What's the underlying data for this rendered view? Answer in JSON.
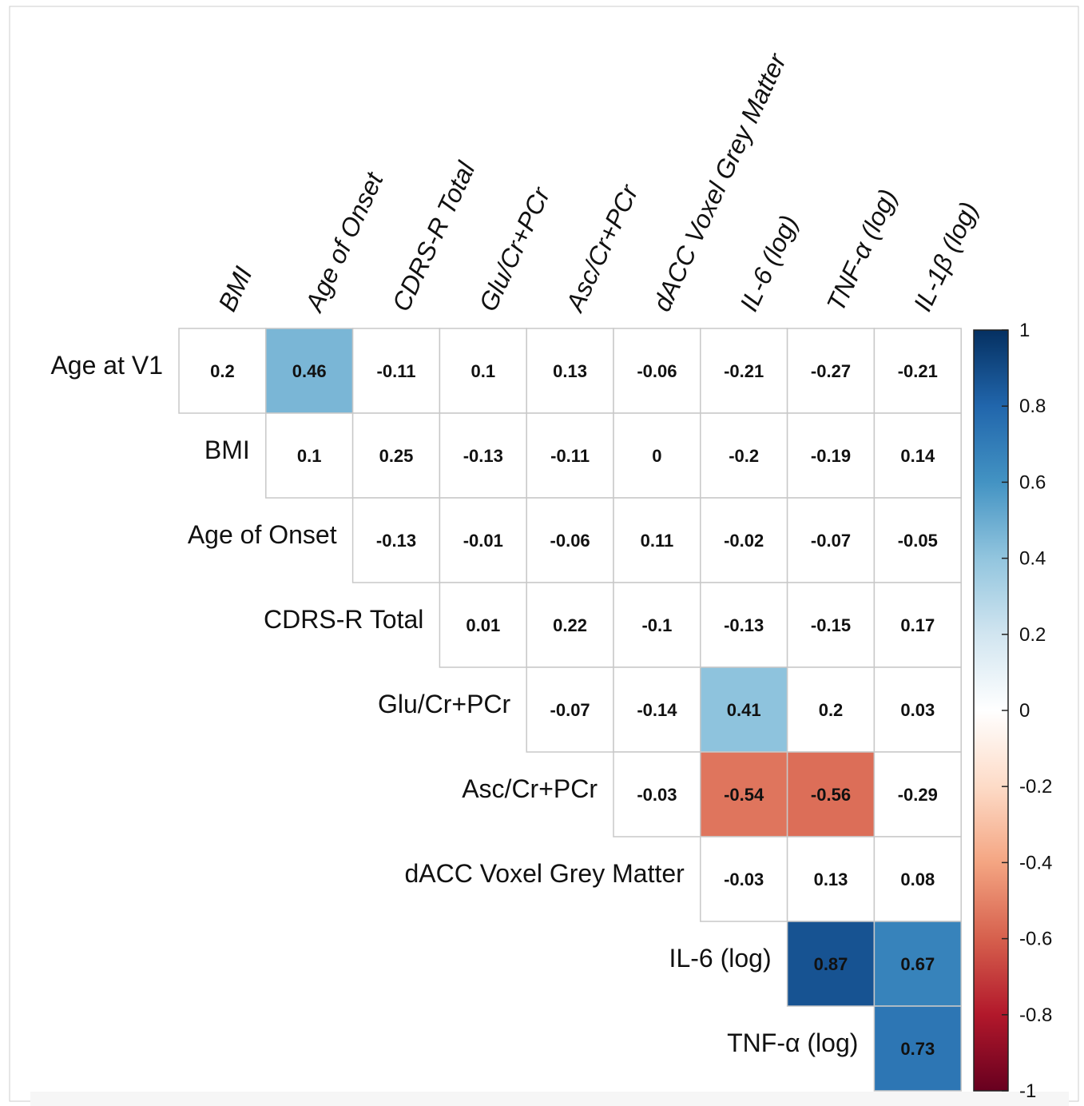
{
  "chart_data": {
    "type": "heatmap",
    "title": "",
    "layout": "upper-triangle correlation matrix",
    "columns": [
      "BMI",
      "Age of Onset",
      "CDRS-R Total",
      "Glu/Cr+PCr",
      "Asc/Cr+PCr",
      "dACC Voxel Grey Matter",
      "IL-6 (log)",
      "TNF-α (log)",
      "IL-1β (log)"
    ],
    "rows": [
      "Age at V1",
      "BMI",
      "Age of Onset",
      "CDRS-R Total",
      "Glu/Cr+PCr",
      "Asc/Cr+PCr",
      "dACC Voxel Grey Matter",
      "IL-6 (log)",
      "TNF-α (log)"
    ],
    "values": [
      [
        "0.2",
        "0.46",
        "-0.11",
        "0.1",
        "0.13",
        "-0.06",
        "-0.21",
        "-0.27",
        "-0.21"
      ],
      [
        null,
        "0.1",
        "0.25",
        "-0.13",
        "-0.11",
        "0",
        "-0.2",
        "-0.19",
        "0.14"
      ],
      [
        null,
        null,
        "-0.13",
        "-0.01",
        "-0.06",
        "0.11",
        "-0.02",
        "-0.07",
        "-0.05"
      ],
      [
        null,
        null,
        null,
        "0.01",
        "0.22",
        "-0.1",
        "-0.13",
        "-0.15",
        "0.17"
      ],
      [
        null,
        null,
        null,
        null,
        "-0.07",
        "-0.14",
        "0.41",
        "0.2",
        "0.03"
      ],
      [
        null,
        null,
        null,
        null,
        null,
        "-0.03",
        "-0.54",
        "-0.56",
        "-0.29"
      ],
      [
        null,
        null,
        null,
        null,
        null,
        null,
        "-0.03",
        "0.13",
        "0.08"
      ],
      [
        null,
        null,
        null,
        null,
        null,
        null,
        null,
        "0.87",
        "0.67"
      ],
      [
        null,
        null,
        null,
        null,
        null,
        null,
        null,
        null,
        "0.73"
      ]
    ],
    "highlighted_cells": [
      [
        0,
        1
      ],
      [
        4,
        6
      ],
      [
        5,
        6
      ],
      [
        5,
        7
      ],
      [
        7,
        7
      ],
      [
        7,
        8
      ],
      [
        8,
        8
      ]
    ],
    "colorbar": {
      "range": [
        -1,
        1
      ],
      "ticks": [
        "1",
        "0.8",
        "0.6",
        "0.4",
        "0.2",
        "0",
        "-0.2",
        "-0.4",
        "-0.6",
        "-0.8",
        "-1"
      ],
      "colormap": "red-white-blue (RdBu)",
      "color_stops": {
        "-1": "#67001F",
        "-0.8": "#B2182B",
        "-0.6": "#D6604D",
        "-0.4": "#F4A582",
        "-0.2": "#FDDBC7",
        "0": "#FFFFFF",
        "0.2": "#D1E5F0",
        "0.4": "#92C5DE",
        "0.6": "#4393C3",
        "0.8": "#2166AC",
        "1": "#053061"
      }
    },
    "grid_color": "#c8c8c8"
  }
}
